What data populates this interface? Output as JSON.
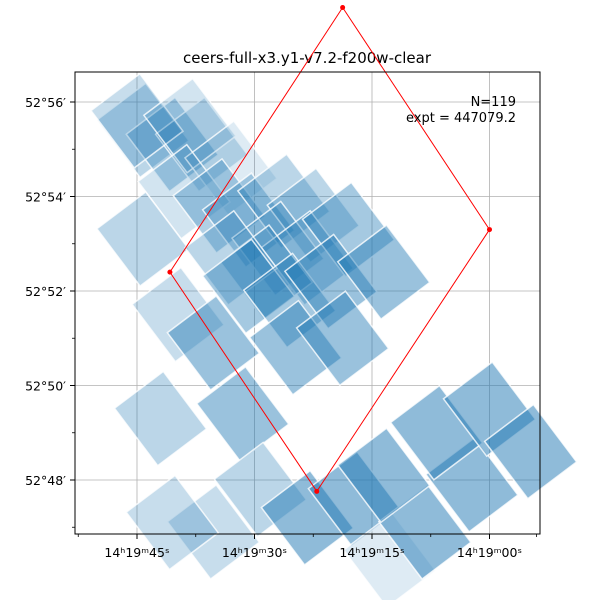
{
  "chart_data": {
    "type": "scatter",
    "title": "ceers-full-x3.y1-v7.2-f200w-clear",
    "annotation": {
      "n_label": "N=119",
      "expt_label": "expt = 447079.2"
    },
    "xaxis": {
      "label": "",
      "ticks": [
        {
          "value": 0,
          "text": "14ʰ19ᵐ45ˢ"
        },
        {
          "value": 1,
          "text": "14ʰ19ᵐ30ˢ"
        },
        {
          "value": 2,
          "text": "14ʰ19ᵐ15ˢ"
        },
        {
          "value": 3,
          "text": "14ʰ19ᵐ00ˢ"
        }
      ]
    },
    "yaxis": {
      "label": "",
      "ticks": [
        {
          "value": 0,
          "text": "52°48′"
        },
        {
          "value": 1,
          "text": "52°50′"
        },
        {
          "value": 2,
          "text": "52°52′"
        },
        {
          "value": 3,
          "text": "52°54′"
        },
        {
          "value": 4,
          "text": "52°56′"
        }
      ]
    },
    "grid": true,
    "footprint_color": "#1f77b4",
    "outline_color": "#ff0000",
    "footprints": [
      {
        "cx": 0.05,
        "cy": 3.7,
        "w": 0.52,
        "h": 0.95,
        "a": 0.3
      },
      {
        "cx": 0.3,
        "cy": 3.55,
        "w": 0.52,
        "h": 0.95,
        "a": 0.35
      },
      {
        "cx": 0.55,
        "cy": 3.55,
        "w": 0.52,
        "h": 0.95,
        "a": 0.25
      },
      {
        "cx": 0.0,
        "cy": 3.8,
        "w": 0.52,
        "h": 0.95,
        "a": 0.25
      },
      {
        "cx": 0.45,
        "cy": 3.75,
        "w": 0.52,
        "h": 0.95,
        "a": 0.2
      },
      {
        "cx": 0.8,
        "cy": 3.3,
        "w": 0.52,
        "h": 0.95,
        "a": 0.15
      },
      {
        "cx": 0.4,
        "cy": 3.05,
        "w": 0.52,
        "h": 0.95,
        "a": 0.2
      },
      {
        "cx": 0.7,
        "cy": 2.9,
        "w": 0.52,
        "h": 0.95,
        "a": 0.35
      },
      {
        "cx": 0.95,
        "cy": 2.75,
        "w": 0.52,
        "h": 0.95,
        "a": 0.35
      },
      {
        "cx": 1.25,
        "cy": 2.95,
        "w": 0.52,
        "h": 0.95,
        "a": 0.3
      },
      {
        "cx": 1.5,
        "cy": 2.8,
        "w": 0.52,
        "h": 0.95,
        "a": 0.3
      },
      {
        "cx": 1.2,
        "cy": 2.45,
        "w": 0.52,
        "h": 0.95,
        "a": 0.3
      },
      {
        "cx": 1.45,
        "cy": 2.35,
        "w": 0.52,
        "h": 0.95,
        "a": 0.35
      },
      {
        "cx": 1.8,
        "cy": 2.65,
        "w": 0.52,
        "h": 0.95,
        "a": 0.4
      },
      {
        "cx": 1.1,
        "cy": 2.2,
        "w": 0.52,
        "h": 0.95,
        "a": 0.35
      },
      {
        "cx": 0.05,
        "cy": 2.55,
        "w": 0.52,
        "h": 0.95,
        "a": 0.3
      },
      {
        "cx": 0.8,
        "cy": 2.35,
        "w": 0.52,
        "h": 0.95,
        "a": 0.3
      },
      {
        "cx": 0.95,
        "cy": 2.05,
        "w": 0.52,
        "h": 0.95,
        "a": 0.4
      },
      {
        "cx": 1.3,
        "cy": 1.9,
        "w": 0.52,
        "h": 0.95,
        "a": 0.4
      },
      {
        "cx": 1.65,
        "cy": 2.1,
        "w": 0.52,
        "h": 0.95,
        "a": 0.45
      },
      {
        "cx": 2.1,
        "cy": 2.2,
        "w": 0.52,
        "h": 0.95,
        "a": 0.45
      },
      {
        "cx": 0.35,
        "cy": 1.75,
        "w": 0.52,
        "h": 0.95,
        "a": 0.25
      },
      {
        "cx": 0.65,
        "cy": 1.45,
        "w": 0.52,
        "h": 0.95,
        "a": 0.45
      },
      {
        "cx": 1.35,
        "cy": 1.4,
        "w": 0.52,
        "h": 0.95,
        "a": 0.45
      },
      {
        "cx": 1.75,
        "cy": 1.5,
        "w": 0.52,
        "h": 0.95,
        "a": 0.45
      },
      {
        "cx": 0.2,
        "cy": 0.65,
        "w": 0.52,
        "h": 0.95,
        "a": 0.3
      },
      {
        "cx": 0.9,
        "cy": 0.7,
        "w": 0.52,
        "h": 0.95,
        "a": 0.45
      },
      {
        "cx": 0.65,
        "cy": -0.55,
        "w": 0.52,
        "h": 0.95,
        "a": 0.25
      },
      {
        "cx": 1.05,
        "cy": -0.1,
        "w": 0.52,
        "h": 0.95,
        "a": 0.3
      },
      {
        "cx": 0.3,
        "cy": -0.45,
        "w": 0.52,
        "h": 0.95,
        "a": 0.25
      },
      {
        "cx": 1.45,
        "cy": -0.4,
        "w": 0.52,
        "h": 0.95,
        "a": 0.5
      },
      {
        "cx": 1.85,
        "cy": -0.2,
        "w": 0.52,
        "h": 0.95,
        "a": 0.5
      },
      {
        "cx": 2.15,
        "cy": -0.85,
        "w": 0.52,
        "h": 0.95,
        "a": 0.15
      },
      {
        "cx": 2.45,
        "cy": -0.55,
        "w": 0.52,
        "h": 0.95,
        "a": 0.5
      },
      {
        "cx": 2.85,
        "cy": -0.05,
        "w": 0.52,
        "h": 0.95,
        "a": 0.5
      },
      {
        "cx": 2.1,
        "cy": 0.05,
        "w": 0.52,
        "h": 0.95,
        "a": 0.5
      },
      {
        "cx": 2.55,
        "cy": 0.5,
        "w": 0.52,
        "h": 0.95,
        "a": 0.5
      },
      {
        "cx": 3.0,
        "cy": 0.75,
        "w": 0.52,
        "h": 0.95,
        "a": 0.5
      },
      {
        "cx": 3.35,
        "cy": 0.3,
        "w": 0.52,
        "h": 0.95,
        "a": 0.5
      }
    ],
    "outline": [
      {
        "x": 0.28,
        "y": 2.2
      },
      {
        "x": 1.75,
        "y": 5.0
      },
      {
        "x": 3.0,
        "y": 2.65
      },
      {
        "x": 1.53,
        "y": -0.12
      }
    ]
  }
}
